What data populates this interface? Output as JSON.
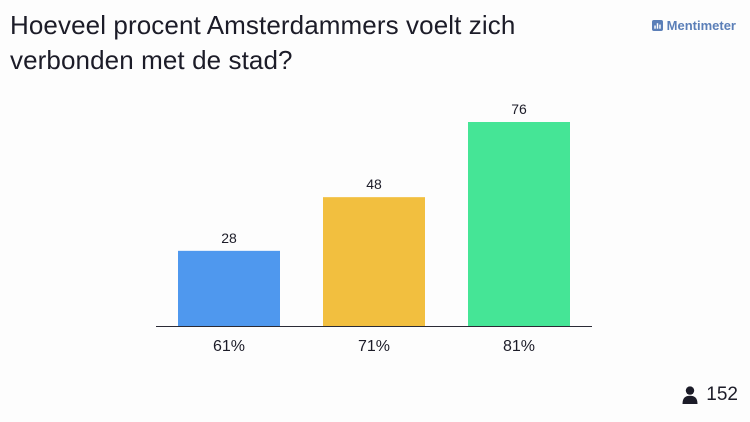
{
  "slide": {
    "title": "Hoeveel procent Amsterdammers voelt zich verbonden met de stad?"
  },
  "brand": {
    "name": "Mentimeter",
    "icon": "mentimeter-logo-icon",
    "color": "#5b7fb8"
  },
  "participants": {
    "icon": "person-icon",
    "count": "152"
  },
  "chart_data": {
    "type": "bar",
    "categories": [
      "61%",
      "71%",
      "81%"
    ],
    "values": [
      28,
      48,
      76
    ],
    "colors": [
      "#4f98ee",
      "#f2bf3f",
      "#45e596"
    ],
    "title": "Hoeveel procent Amsterdammers voelt zich verbonden met de stad?",
    "xlabel": "",
    "ylabel": "",
    "ylim": [
      0,
      76
    ],
    "grid": false
  }
}
